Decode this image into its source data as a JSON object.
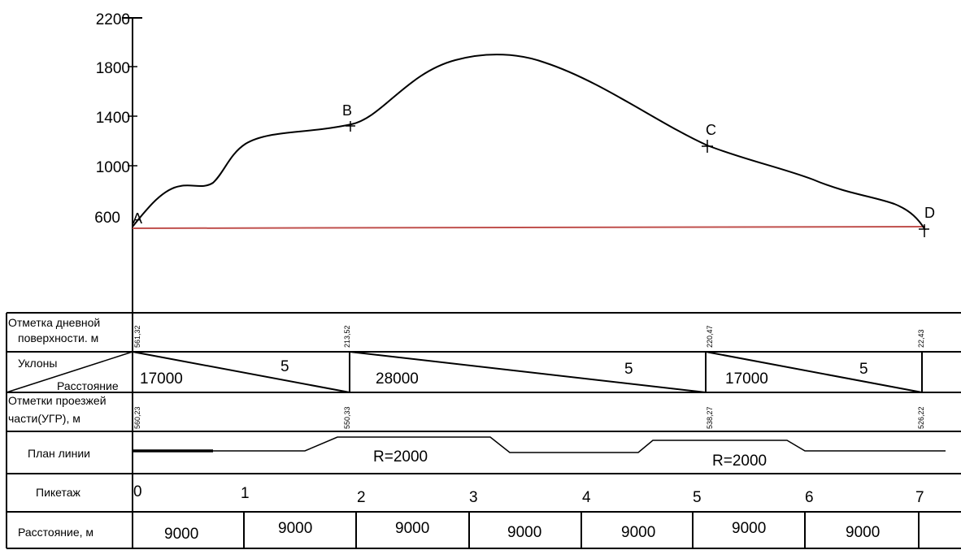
{
  "y_axis": {
    "ticks": [
      "2200",
      "1800",
      "1400",
      "1000",
      "600"
    ]
  },
  "points": {
    "a": "A",
    "b": "B",
    "c": "C",
    "d": "D"
  },
  "rows": {
    "surface": {
      "title_line1": "Отметка дневной",
      "title_line2": "поверхности. м",
      "values": [
        "561,32",
        "213,52",
        "220,47",
        "22,43"
      ]
    },
    "slopes": {
      "title_line1": "Уклоны",
      "title_line2": "Расстояние",
      "segments": [
        {
          "distance": "17000",
          "slope": "5"
        },
        {
          "distance": "28000",
          "slope": "5"
        },
        {
          "distance": "17000",
          "slope": "5"
        }
      ]
    },
    "roadway": {
      "title_line1": "Отметки проезжей",
      "title_line2": "части(УГР), м",
      "values": [
        "560,23",
        "550,33",
        "538,27",
        "526,22"
      ]
    },
    "plan": {
      "title": "План линии",
      "curve1": "R=2000",
      "curve2": "R=2000"
    },
    "pickets": {
      "title": "Пикетаж",
      "labels": [
        "0",
        "1",
        "2",
        "3",
        "4",
        "5",
        "6",
        "7"
      ]
    },
    "distances": {
      "title": "Расстояние, м",
      "values": [
        "9000",
        "9000",
        "9000",
        "9000",
        "9000",
        "9000",
        "9000"
      ]
    }
  },
  "colors": {
    "profile": "#000000",
    "design_line": "#c0504d",
    "grid": "#000000"
  }
}
